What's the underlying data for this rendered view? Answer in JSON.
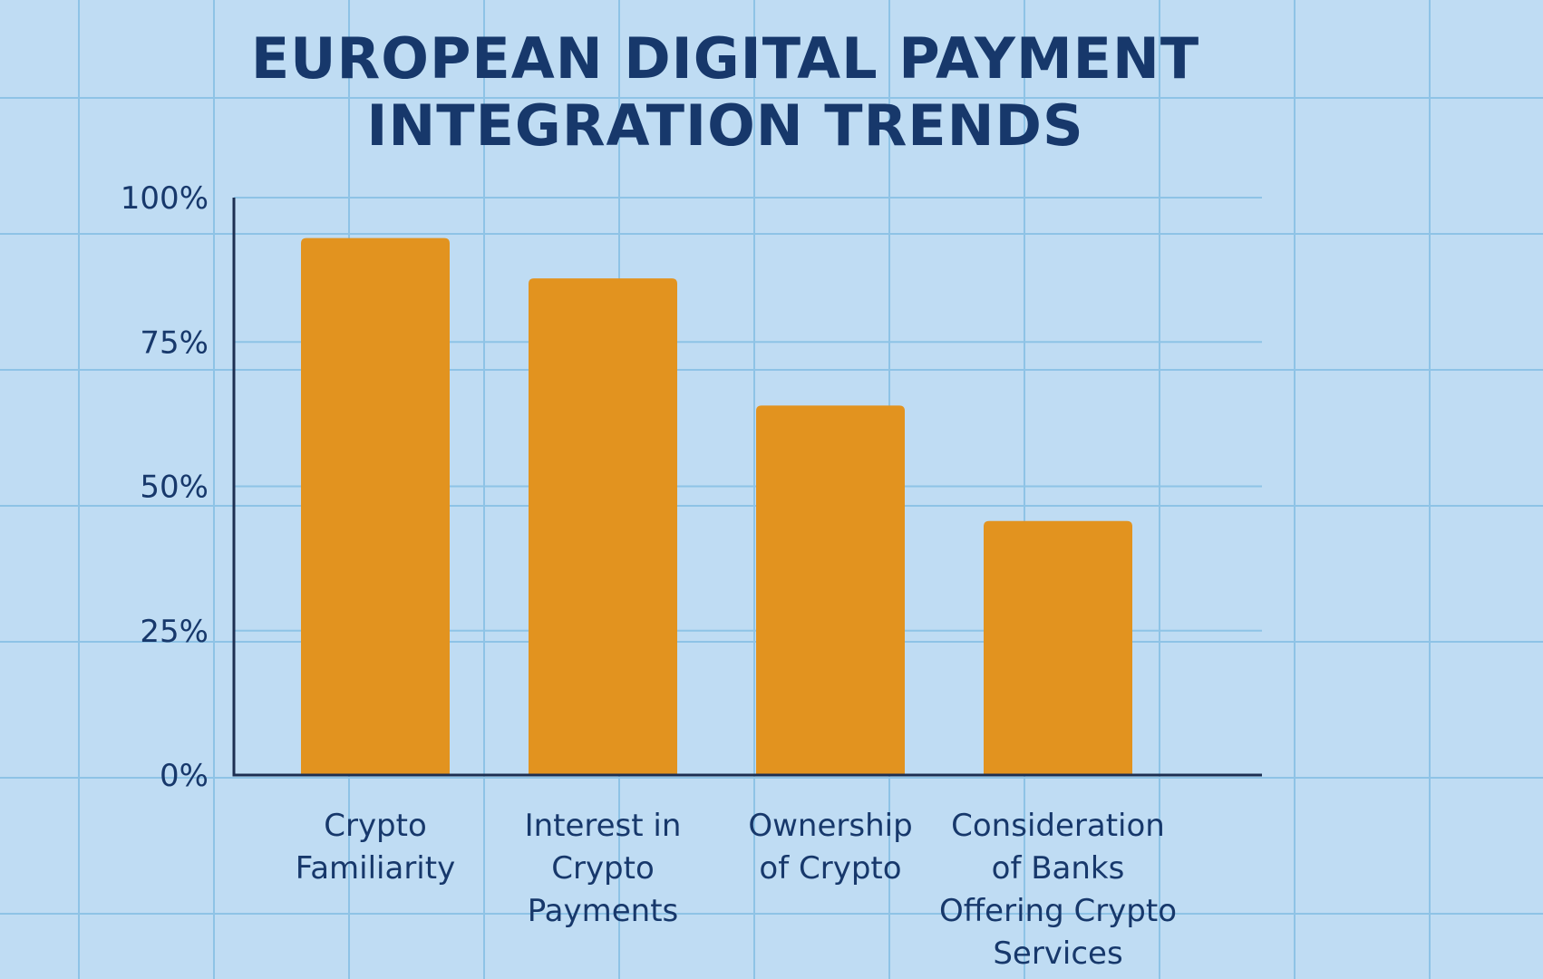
{
  "chart_data": {
    "type": "bar",
    "title": "EUROPEAN DIGITAL PAYMENT\nINTEGRATION TRENDS",
    "categories": [
      "Crypto\nFamiliarity",
      "Interest in\nCrypto\nPayments",
      "Ownership\nof Crypto",
      "Consideration\nof Banks\nOffering Crypto\nServices"
    ],
    "values": [
      93,
      86,
      64,
      44
    ],
    "y_ticks": [
      0,
      25,
      50,
      75,
      100
    ],
    "y_tick_labels": [
      "0%",
      "25%",
      "50%",
      "75%",
      "100%"
    ],
    "ylim": [
      0,
      100
    ],
    "xlabel": "",
    "ylabel": "",
    "grid": true,
    "colors": {
      "bar": "#e2931f",
      "axis": "#1d2f52",
      "text": "#17386b",
      "gridline": "#8ec3e6"
    }
  }
}
